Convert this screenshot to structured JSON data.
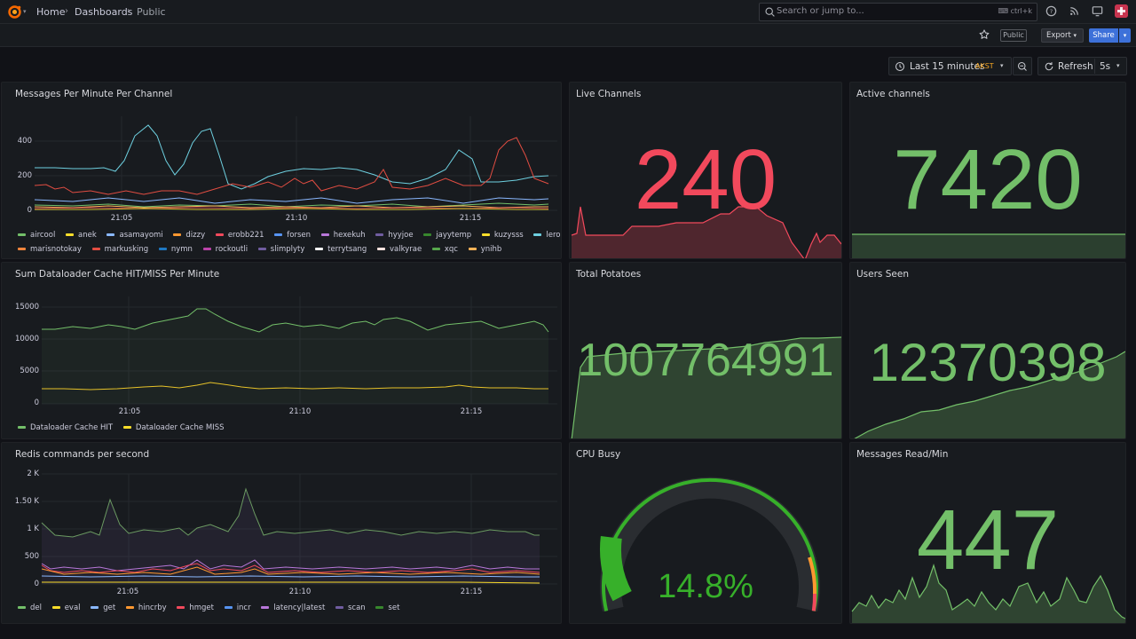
{
  "breadcrumb": {
    "home": "Home",
    "dashboards": "Dashboards",
    "current": "Public"
  },
  "search": {
    "placeholder": "Search or jump to...",
    "shortcut": "ctrl+k"
  },
  "toolbar": {
    "public_badge": "Public",
    "export_label": "Export",
    "share_label": "Share"
  },
  "time": {
    "range": "Last 15 minutes",
    "tz": "AKST",
    "refresh_label": "Refresh",
    "refresh_interval": "5s"
  },
  "colors": {
    "green": "#73bf69",
    "red": "#f2495c",
    "yellow": "#fade2a",
    "blue": "#5794f2",
    "orange": "#ff9830",
    "purple": "#b877d9"
  },
  "panels": {
    "messages": {
      "title": "Messages Per Minute Per Channel",
      "yticks": [
        "400",
        "200",
        "0"
      ],
      "xticks": [
        "21:05",
        "21:10",
        "21:15"
      ],
      "legend": [
        {
          "name": "aircool",
          "color": "#73bf69"
        },
        {
          "name": "anek",
          "color": "#fade2a"
        },
        {
          "name": "asamayomi",
          "color": "#8ab8ff"
        },
        {
          "name": "dizzy",
          "color": "#ff9830"
        },
        {
          "name": "erobb221",
          "color": "#f2495c"
        },
        {
          "name": "forsen",
          "color": "#5794f2"
        },
        {
          "name": "hexekuh",
          "color": "#b877d9"
        },
        {
          "name": "hyyjoe",
          "color": "#705da0"
        },
        {
          "name": "jayytemp",
          "color": "#37872d"
        },
        {
          "name": "kuzysss",
          "color": "#fade2a"
        },
        {
          "name": "lerokes",
          "color": "#6ed0e0"
        },
        {
          "name": "marisnotokay",
          "color": "#ef843c"
        },
        {
          "name": "markusking",
          "color": "#e24d42"
        },
        {
          "name": "nymn",
          "color": "#1f78c1"
        },
        {
          "name": "rockoutli",
          "color": "#ba43a9"
        },
        {
          "name": "slimplyty",
          "color": "#705da0"
        },
        {
          "name": "terrytsang",
          "color": "#f4f4f4"
        },
        {
          "name": "valkyrae",
          "color": "#fce2de"
        },
        {
          "name": "xqc",
          "color": "#56a64b"
        },
        {
          "name": "ynihb",
          "color": "#ffb357"
        }
      ]
    },
    "dataloader": {
      "title": "Sum Dataloader Cache HIT/MISS Per Minute",
      "yticks": [
        "15000",
        "10000",
        "5000",
        "0"
      ],
      "xticks": [
        "21:05",
        "21:10",
        "21:15"
      ],
      "legend": [
        {
          "name": "Dataloader Cache HIT",
          "color": "#73bf69"
        },
        {
          "name": "Dataloader Cache MISS",
          "color": "#fade2a"
        }
      ]
    },
    "redis": {
      "title": "Redis commands per second",
      "yticks": [
        "2 K",
        "1.50 K",
        "1 K",
        "500",
        "0"
      ],
      "xticks": [
        "21:05",
        "21:10",
        "21:15"
      ],
      "legend": [
        {
          "name": "del",
          "color": "#73bf69"
        },
        {
          "name": "eval",
          "color": "#fade2a"
        },
        {
          "name": "get",
          "color": "#8ab8ff"
        },
        {
          "name": "hincrby",
          "color": "#ff9830"
        },
        {
          "name": "hmget",
          "color": "#f2495c"
        },
        {
          "name": "incr",
          "color": "#5794f2"
        },
        {
          "name": "latency|latest",
          "color": "#b877d9"
        },
        {
          "name": "scan",
          "color": "#705da0"
        },
        {
          "name": "set",
          "color": "#37872d"
        }
      ]
    },
    "live_channels": {
      "title": "Live Channels",
      "value": "240",
      "color": "#f2495c"
    },
    "active_channels": {
      "title": "Active channels",
      "value": "7420",
      "color": "#73bf69"
    },
    "total_potatoes": {
      "title": "Total Potatoes",
      "value": "1007764991",
      "color": "#73bf69"
    },
    "users_seen": {
      "title": "Users Seen",
      "value": "12370398",
      "color": "#73bf69"
    },
    "cpu_busy": {
      "title": "CPU Busy",
      "value": "14.8%",
      "fraction": 0.148,
      "color": "#37b02a"
    },
    "messages_read": {
      "title": "Messages Read/Min",
      "value": "447",
      "color": "#73bf69"
    }
  }
}
